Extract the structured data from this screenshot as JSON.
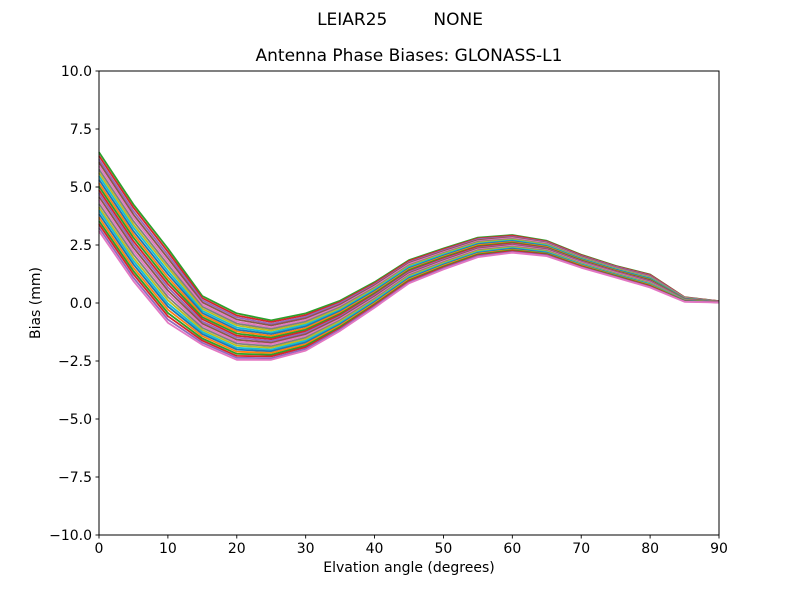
{
  "figure": {
    "suptitle_left": "LEIAR25",
    "suptitle_right": "NONE",
    "title": "Antenna Phase Biases: GLONASS-L1",
    "xlabel": "Elvation angle (degrees)",
    "ylabel": "Bias (mm)",
    "background": "#ffffff",
    "text_color": "#000000"
  },
  "chart_data": {
    "type": "line",
    "suptitle": "LEIAR25        NONE",
    "title": "Antenna Phase Biases: GLONASS-L1",
    "xlabel": "Elvation angle (degrees)",
    "ylabel": "Bias (mm)",
    "xlim": [
      0,
      90
    ],
    "ylim": [
      -10,
      10
    ],
    "xticks": [
      0,
      10,
      20,
      30,
      40,
      50,
      60,
      70,
      80,
      90
    ],
    "xtick_labels": [
      "0",
      "10",
      "20",
      "30",
      "40",
      "50",
      "60",
      "70",
      "80",
      "90"
    ],
    "yticks": [
      10,
      7.5,
      5,
      2.5,
      0,
      -2.5,
      -5,
      -7.5,
      -10
    ],
    "ytick_labels": [
      "10.0",
      "7.5",
      "5.0",
      "2.5",
      "0.0",
      "−2.5",
      "−5.0",
      "−7.5",
      "−10.0"
    ],
    "grid": false,
    "legend": "none",
    "line_width": 1.8,
    "color_cycle": [
      "#1f77b4",
      "#ff7f0e",
      "#2ca02c",
      "#d62728",
      "#9467bd",
      "#8c564b",
      "#e377c2",
      "#7f7f7f",
      "#bcbd22",
      "#17becf"
    ],
    "x": [
      0,
      5,
      10,
      15,
      20,
      25,
      30,
      35,
      40,
      45,
      50,
      55,
      60,
      65,
      70,
      75,
      80,
      85,
      90
    ],
    "series": [
      {
        "color": "#2ca02c",
        "values": [
          6.5,
          4.25,
          2.35,
          0.3,
          -0.45,
          -0.75,
          -0.45,
          0.1,
          0.9,
          1.85,
          2.35,
          2.82,
          2.93,
          2.68,
          2.08,
          1.6,
          1.23,
          0.25,
          0.08
        ]
      },
      {
        "color": "#d62728",
        "values": [
          6.35,
          4.11,
          2.21,
          0.21,
          -0.54,
          -0.82,
          -0.52,
          0.04,
          0.85,
          1.81,
          2.31,
          2.78,
          2.9,
          2.65,
          2.06,
          1.58,
          1.21,
          0.24,
          0.08
        ]
      },
      {
        "color": "#9467bd",
        "values": [
          6.2,
          3.96,
          2.07,
          0.12,
          -0.62,
          -0.9,
          -0.59,
          -0.01,
          0.8,
          1.76,
          2.27,
          2.75,
          2.86,
          2.62,
          2.03,
          1.56,
          1.18,
          0.23,
          0.07
        ]
      },
      {
        "color": "#8c564b",
        "values": [
          6.06,
          3.82,
          1.93,
          0.03,
          -0.71,
          -0.97,
          -0.66,
          -0.07,
          0.76,
          1.72,
          2.23,
          2.71,
          2.83,
          2.59,
          2.01,
          1.53,
          1.16,
          0.22,
          0.07
        ]
      },
      {
        "color": "#e377c2",
        "values": [
          5.91,
          3.68,
          1.79,
          -0.07,
          -0.8,
          -1.05,
          -0.73,
          -0.13,
          0.71,
          1.68,
          2.19,
          2.67,
          2.8,
          2.57,
          1.98,
          1.51,
          1.13,
          0.22,
          0.07
        ]
      },
      {
        "color": "#7f7f7f",
        "values": [
          5.76,
          3.53,
          1.65,
          -0.16,
          -0.89,
          -1.12,
          -0.8,
          -0.18,
          0.66,
          1.63,
          2.15,
          2.64,
          2.76,
          2.54,
          1.96,
          1.49,
          1.11,
          0.21,
          0.07
        ]
      },
      {
        "color": "#bcbd22",
        "values": [
          5.61,
          3.39,
          1.52,
          -0.25,
          -0.97,
          -1.19,
          -0.87,
          -0.24,
          0.61,
          1.59,
          2.12,
          2.6,
          2.73,
          2.51,
          1.93,
          1.47,
          1.08,
          0.2,
          0.06
        ]
      },
      {
        "color": "#17becf",
        "values": [
          5.47,
          3.25,
          1.38,
          -0.34,
          -1.06,
          -1.27,
          -0.94,
          -0.3,
          0.57,
          1.55,
          2.08,
          2.56,
          2.7,
          2.48,
          1.91,
          1.45,
          1.06,
          0.19,
          0.06
        ]
      },
      {
        "color": "#1f77b4",
        "values": [
          5.32,
          3.1,
          1.24,
          -0.43,
          -1.15,
          -1.34,
          -1.01,
          -0.35,
          0.52,
          1.5,
          2.04,
          2.53,
          2.67,
          2.45,
          1.89,
          1.43,
          1.04,
          0.18,
          0.06
        ]
      },
      {
        "color": "#ff7f0e",
        "values": [
          5.17,
          2.96,
          1.1,
          -0.52,
          -1.23,
          -1.42,
          -1.08,
          -0.41,
          0.47,
          1.46,
          2.0,
          2.49,
          2.63,
          2.42,
          1.86,
          1.4,
          1.01,
          0.17,
          0.06
        ]
      },
      {
        "color": "#2ca02c",
        "values": [
          5.02,
          2.82,
          0.96,
          -0.61,
          -1.32,
          -1.49,
          -1.15,
          -0.47,
          0.42,
          1.42,
          1.96,
          2.45,
          2.6,
          2.39,
          1.84,
          1.38,
          0.99,
          0.16,
          0.05
        ]
      },
      {
        "color": "#d62728",
        "values": [
          4.87,
          2.67,
          0.82,
          -0.7,
          -1.41,
          -1.56,
          -1.22,
          -0.52,
          0.37,
          1.37,
          1.92,
          2.42,
          2.57,
          2.36,
          1.81,
          1.36,
          0.96,
          0.15,
          0.05
        ]
      },
      {
        "color": "#9467bd",
        "values": [
          4.73,
          2.53,
          0.68,
          -0.8,
          -1.49,
          -1.64,
          -1.28,
          -0.58,
          0.33,
          1.33,
          1.88,
          2.38,
          2.53,
          2.34,
          1.79,
          1.34,
          0.94,
          0.15,
          0.05
        ]
      },
      {
        "color": "#8c564b",
        "values": [
          4.58,
          2.39,
          0.54,
          -0.89,
          -1.58,
          -1.71,
          -1.35,
          -0.63,
          0.28,
          1.28,
          1.84,
          2.35,
          2.5,
          2.31,
          1.76,
          1.32,
          0.91,
          0.14,
          0.05
        ]
      },
      {
        "color": "#e377c2",
        "values": [
          4.43,
          2.24,
          0.4,
          -0.98,
          -1.67,
          -1.78,
          -1.42,
          -0.69,
          0.23,
          1.24,
          1.8,
          2.31,
          2.47,
          2.28,
          1.74,
          1.3,
          0.89,
          0.13,
          0.04
        ]
      },
      {
        "color": "#7f7f7f",
        "values": [
          4.28,
          2.1,
          0.26,
          -1.07,
          -1.75,
          -1.86,
          -1.49,
          -0.75,
          0.18,
          1.2,
          1.76,
          2.27,
          2.43,
          2.25,
          1.71,
          1.27,
          0.86,
          0.12,
          0.04
        ]
      },
      {
        "color": "#bcbd22",
        "values": [
          4.13,
          1.95,
          0.12,
          -1.16,
          -1.84,
          -1.93,
          -1.56,
          -0.8,
          0.13,
          1.15,
          1.72,
          2.24,
          2.4,
          2.22,
          1.69,
          1.25,
          0.84,
          0.11,
          0.04
        ]
      },
      {
        "color": "#17becf",
        "values": [
          3.99,
          1.81,
          -0.02,
          -1.25,
          -1.93,
          -2.01,
          -1.63,
          -0.86,
          0.09,
          1.11,
          1.68,
          2.2,
          2.37,
          2.19,
          1.67,
          1.23,
          0.82,
          0.1,
          0.04
        ]
      },
      {
        "color": "#1f77b4",
        "values": [
          3.84,
          1.67,
          -0.15,
          -1.34,
          -2.01,
          -2.08,
          -1.7,
          -0.92,
          0.04,
          1.07,
          1.65,
          2.16,
          2.34,
          2.16,
          1.64,
          1.21,
          0.79,
          0.09,
          0.03
        ]
      },
      {
        "color": "#ff7f0e",
        "values": [
          3.69,
          1.52,
          -0.29,
          -1.43,
          -2.1,
          -2.15,
          -1.77,
          -0.97,
          -0.01,
          1.02,
          1.61,
          2.13,
          2.3,
          2.13,
          1.62,
          1.19,
          0.77,
          0.08,
          0.03
        ]
      },
      {
        "color": "#2ca02c",
        "values": [
          3.54,
          1.38,
          -0.43,
          -1.53,
          -2.19,
          -2.23,
          -1.84,
          -1.03,
          -0.06,
          0.98,
          1.57,
          2.09,
          2.27,
          2.11,
          1.59,
          1.17,
          0.74,
          0.08,
          0.03
        ]
      },
      {
        "color": "#d62728",
        "values": [
          3.4,
          1.24,
          -0.57,
          -1.62,
          -2.28,
          -2.3,
          -1.91,
          -1.09,
          -0.1,
          0.94,
          1.53,
          2.05,
          2.24,
          2.08,
          1.57,
          1.14,
          0.72,
          0.07,
          0.03
        ]
      },
      {
        "color": "#9467bd",
        "values": [
          3.25,
          1.09,
          -0.71,
          -1.71,
          -2.36,
          -2.38,
          -1.98,
          -1.14,
          -0.15,
          0.89,
          1.49,
          2.02,
          2.2,
          2.05,
          1.54,
          1.12,
          0.69,
          0.06,
          0.03
        ]
      },
      {
        "color": "#e377c2",
        "values": [
          3.1,
          0.95,
          -0.85,
          -1.8,
          -2.45,
          -2.45,
          -2.05,
          -1.2,
          -0.2,
          0.85,
          1.45,
          1.98,
          2.17,
          2.02,
          1.52,
          1.1,
          0.67,
          0.05,
          0.02
        ]
      }
    ]
  }
}
